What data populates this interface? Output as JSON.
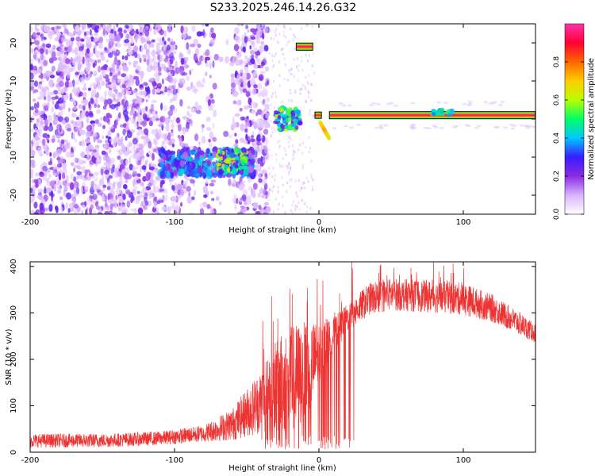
{
  "figure": {
    "title": "S233.2025.246.14.26.G32"
  },
  "chart_data": [
    {
      "type": "heatmap",
      "xlabel": "Height of straight line (km)",
      "ylabel": "Frequency (Hz)",
      "xlim": [
        -200,
        150
      ],
      "ylim": [
        -25,
        25
      ],
      "xticks": [
        -200,
        -100,
        0,
        100
      ],
      "yticks": [
        -20,
        -10,
        0,
        10,
        20
      ],
      "colorbar": {
        "label": "Normalized spectral amplitude",
        "range": [
          0,
          1
        ],
        "ticks": [
          0,
          0.2,
          0.4,
          0.6,
          0.8
        ],
        "colors": [
          "#ffffff",
          "#d9b3ff",
          "#8a2be2",
          "#3a1bff",
          "#00c8ff",
          "#00ff66",
          "#b8ff00",
          "#ffcc00",
          "#ff6600",
          "#ff0033",
          "#ff33aa"
        ]
      },
      "features": [
        {
          "name": "broadband noise",
          "x": [
            -200,
            -35
          ],
          "y": [
            -25,
            25
          ],
          "amplitude": 0.15
        },
        {
          "name": "low frequency cluster",
          "x": [
            -110,
            -45
          ],
          "y": [
            -15,
            -8
          ],
          "amplitude": 0.3
        },
        {
          "name": "strong cluster",
          "x": [
            -70,
            -50
          ],
          "y": [
            -14,
            -8
          ],
          "amplitude": 0.5
        },
        {
          "name": "high line",
          "x": [
            -16,
            -4
          ],
          "y": [
            19,
            19
          ],
          "amplitude": 0.95
        },
        {
          "name": "near-zero blob",
          "x": [
            -35,
            -15
          ],
          "y": [
            -3,
            3
          ],
          "amplitude": 0.45
        },
        {
          "name": "main zero line",
          "x": [
            7,
            150
          ],
          "y": [
            1,
            1
          ],
          "amplitude": 0.95
        },
        {
          "name": "short zero line",
          "x": [
            -3,
            2
          ],
          "y": [
            1,
            1
          ],
          "amplitude": 0.85
        },
        {
          "name": "descending segment",
          "x": [
            1,
            7
          ],
          "y": [
            -1,
            -5
          ],
          "amplitude": 0.75
        }
      ]
    },
    {
      "type": "line",
      "xlabel": "Height of straight line (km)",
      "ylabel": "SNR (10 * v/v)",
      "xlim": [
        -200,
        150
      ],
      "ylim": [
        0,
        410
      ],
      "xticks": [
        -200,
        -100,
        0,
        100
      ],
      "yticks": [
        0,
        100,
        200,
        300,
        400
      ],
      "color": "#ee3333",
      "envelope": [
        {
          "x": -200,
          "base": 25,
          "spread": 15
        },
        {
          "x": -150,
          "base": 25,
          "spread": 15
        },
        {
          "x": -110,
          "base": 30,
          "spread": 15
        },
        {
          "x": -80,
          "base": 40,
          "spread": 18
        },
        {
          "x": -60,
          "base": 60,
          "spread": 35
        },
        {
          "x": -40,
          "base": 110,
          "spread": 70
        },
        {
          "x": -25,
          "base": 150,
          "spread": 110
        },
        {
          "x": -15,
          "base": 160,
          "spread": 120
        },
        {
          "x": -5,
          "base": 190,
          "spread": 90
        },
        {
          "x": 10,
          "base": 250,
          "spread": 40
        },
        {
          "x": 20,
          "base": 290,
          "spread": 30
        },
        {
          "x": 35,
          "base": 330,
          "spread": 35
        },
        {
          "x": 50,
          "base": 340,
          "spread": 35
        },
        {
          "x": 80,
          "base": 335,
          "spread": 35
        },
        {
          "x": 100,
          "base": 330,
          "spread": 35
        },
        {
          "x": 120,
          "base": 310,
          "spread": 30
        },
        {
          "x": 140,
          "base": 275,
          "spread": 25
        },
        {
          "x": 150,
          "base": 255,
          "spread": 20
        }
      ]
    }
  ]
}
